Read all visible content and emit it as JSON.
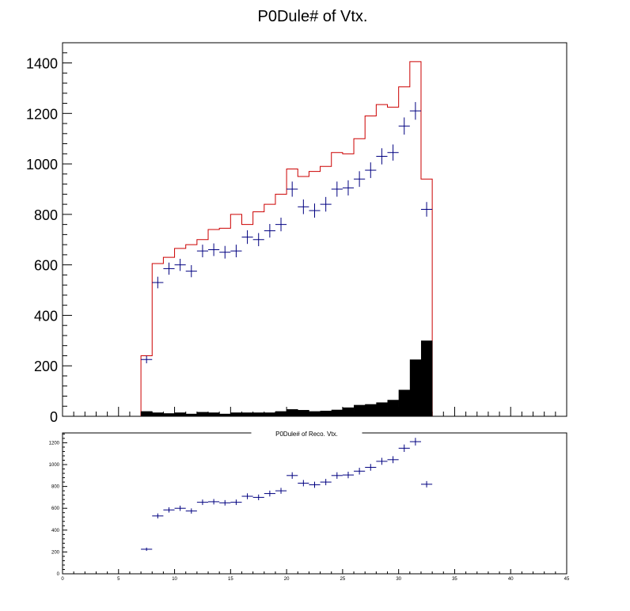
{
  "chart_data": [
    {
      "type": "histogram",
      "title": "P0Dule# of Vtx.",
      "xlim": [
        0,
        45
      ],
      "ylim": [
        0,
        1480
      ],
      "yticks": [
        0,
        200,
        400,
        600,
        800,
        1000,
        1200,
        1400
      ],
      "bin_width": 1,
      "bin_edges_start": 7,
      "series": [
        {
          "style": "step",
          "color": "#cc0000",
          "values": [
            240,
            605,
            630,
            665,
            680,
            700,
            740,
            745,
            800,
            760,
            810,
            840,
            880,
            980,
            950,
            970,
            990,
            1045,
            1040,
            1100,
            1190,
            1235,
            1225,
            1305,
            1405,
            940
          ]
        },
        {
          "style": "errorbar",
          "color": "#000080",
          "values": [
            225,
            530,
            585,
            600,
            575,
            655,
            660,
            650,
            655,
            710,
            700,
            735,
            760,
            900,
            830,
            815,
            840,
            900,
            905,
            940,
            975,
            1030,
            1045,
            1150,
            1210,
            820
          ],
          "errors": [
            15,
            23,
            24,
            24,
            24,
            25,
            25,
            25,
            25,
            27,
            26,
            27,
            27,
            30,
            29,
            28,
            29,
            30,
            30,
            31,
            31,
            32,
            32,
            34,
            35,
            29
          ]
        },
        {
          "style": "filled",
          "color": "#000000",
          "values": [
            20,
            15,
            12,
            15,
            10,
            17,
            15,
            10,
            15,
            15,
            15,
            15,
            20,
            28,
            25,
            20,
            22,
            26,
            35,
            45,
            48,
            55,
            65,
            105,
            225,
            300
          ]
        }
      ]
    },
    {
      "type": "histogram",
      "title": "P0Dule# of Reco. Vtx.",
      "xlim": [
        0,
        45
      ],
      "ylim": [
        0,
        1290
      ],
      "xticks": [
        0,
        5,
        10,
        15,
        20,
        25,
        30,
        35,
        40,
        45
      ],
      "yticks": [
        0,
        200,
        400,
        600,
        800,
        1000,
        1200
      ],
      "bin_width": 1,
      "bin_edges_start": 7,
      "series": [
        {
          "style": "errorbar",
          "color": "#000080",
          "values": [
            225,
            530,
            585,
            600,
            575,
            655,
            660,
            650,
            655,
            710,
            700,
            735,
            760,
            900,
            830,
            815,
            840,
            900,
            905,
            940,
            975,
            1030,
            1045,
            1150,
            1210,
            820
          ],
          "errors": [
            15,
            23,
            24,
            24,
            24,
            25,
            25,
            25,
            25,
            27,
            26,
            27,
            27,
            30,
            29,
            28,
            29,
            30,
            30,
            31,
            31,
            32,
            32,
            34,
            35,
            29
          ]
        }
      ]
    }
  ]
}
